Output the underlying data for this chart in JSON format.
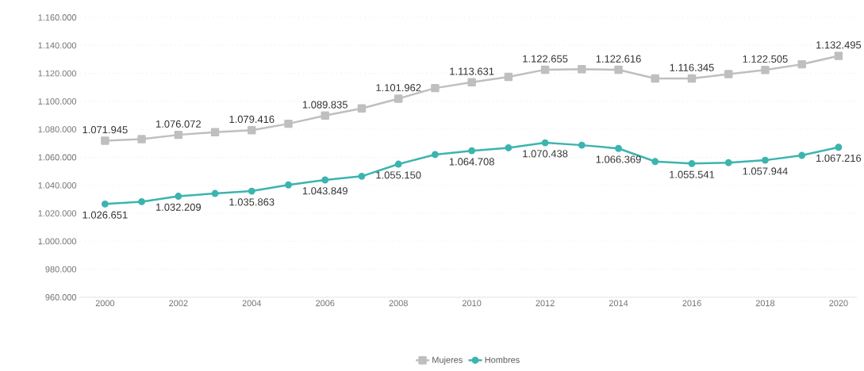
{
  "chart_data": {
    "type": "line",
    "x": [
      2000,
      2001,
      2002,
      2003,
      2004,
      2005,
      2006,
      2007,
      2008,
      2009,
      2010,
      2011,
      2012,
      2013,
      2014,
      2015,
      2016,
      2017,
      2018,
      2019,
      2020
    ],
    "series": [
      {
        "name": "Mujeres",
        "color": "#bfbfbf",
        "marker": "square",
        "values": [
          1071945,
          1073000,
          1076072,
          1078000,
          1079416,
          1084000,
          1089835,
          1095000,
          1101962,
          1109500,
          1113631,
          1117500,
          1122655,
          1123000,
          1122616,
          1116400,
          1116345,
          1119500,
          1122505,
          1126500,
          1132495
        ],
        "value_labels": [
          "1.071.945",
          null,
          "1.076.072",
          null,
          "1.079.416",
          null,
          "1.089.835",
          null,
          "1.101.962",
          null,
          "1.113.631",
          null,
          "1.122.655",
          null,
          "1.122.616",
          null,
          "1.116.345",
          null,
          "1.122.505",
          null,
          "1.132.495"
        ]
      },
      {
        "name": "Hombres",
        "color": "#3cb4af",
        "marker": "circle",
        "values": [
          1026651,
          1028300,
          1032209,
          1034200,
          1035863,
          1040300,
          1043849,
          1046500,
          1055150,
          1062000,
          1064708,
          1066800,
          1070438,
          1068700,
          1066369,
          1057000,
          1055541,
          1056200,
          1057944,
          1061400,
          1067216
        ],
        "value_labels": [
          "1.026.651",
          null,
          "1.032.209",
          null,
          "1.035.863",
          null,
          "1.043.849",
          null,
          "1.055.150",
          null,
          "1.064.708",
          null,
          "1.070.438",
          null,
          "1.066.369",
          null,
          "1.055.541",
          null,
          "1.057.944",
          null,
          "1.067.216"
        ]
      }
    ],
    "xlim": [
      1999.3,
      2020.5
    ],
    "xticks": [
      2000,
      2002,
      2004,
      2006,
      2008,
      2010,
      2012,
      2014,
      2016,
      2018,
      2020
    ],
    "ylim": [
      960000,
      1160000
    ],
    "yticks": [
      {
        "value": 960000,
        "label": "960.000"
      },
      {
        "value": 980000,
        "label": "980.000"
      },
      {
        "value": 1000000,
        "label": "1.000.000"
      },
      {
        "value": 1020000,
        "label": "1.020.000"
      },
      {
        "value": 1040000,
        "label": "1.040.000"
      },
      {
        "value": 1060000,
        "label": "1.060.000"
      },
      {
        "value": 1080000,
        "label": "1.080.000"
      },
      {
        "value": 1100000,
        "label": "1.100.000"
      },
      {
        "value": 1120000,
        "label": "1.120.000"
      },
      {
        "value": 1140000,
        "label": "1.140.000"
      },
      {
        "value": 1160000,
        "label": "1.160.000"
      }
    ],
    "grid": "y",
    "legend": "bottom",
    "line_style": "solid"
  }
}
